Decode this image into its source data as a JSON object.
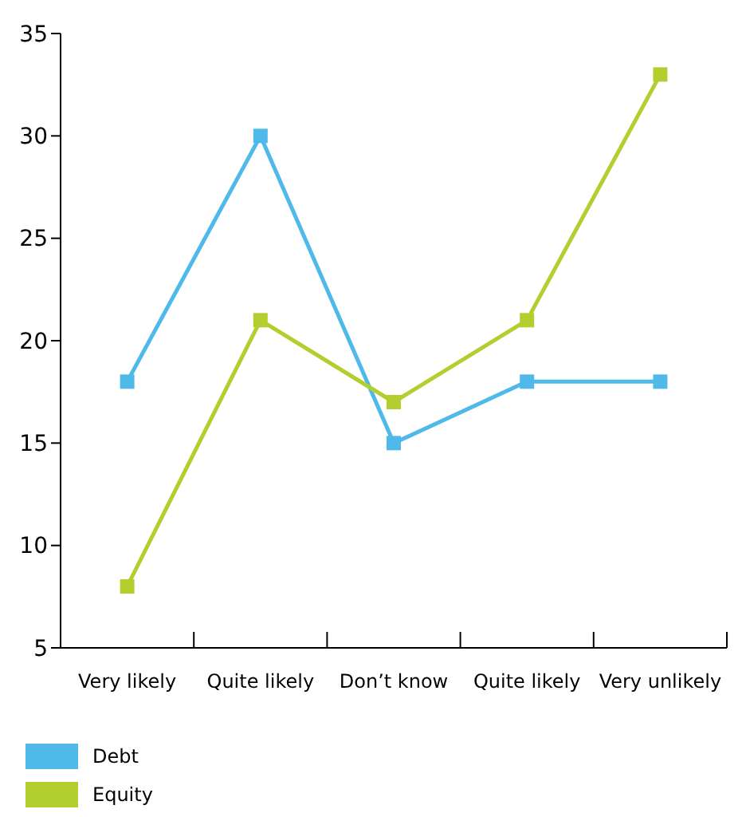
{
  "chart_data": {
    "type": "line",
    "categories": [
      "Very likely",
      "Quite likely",
      "Don’t know",
      "Quite likely",
      "Very unlikely"
    ],
    "series": [
      {
        "name": "Debt",
        "color": "#4fb9ea",
        "values": [
          18,
          30,
          15,
          18,
          18
        ]
      },
      {
        "name": "Equity",
        "color": "#b2cf2f",
        "values": [
          8,
          21,
          17,
          21,
          33
        ]
      }
    ],
    "ylim": [
      5,
      35
    ],
    "yticks": [
      5,
      10,
      15,
      20,
      25,
      30,
      35
    ],
    "grid": false,
    "legend": "bottom left",
    "marker": "square"
  }
}
